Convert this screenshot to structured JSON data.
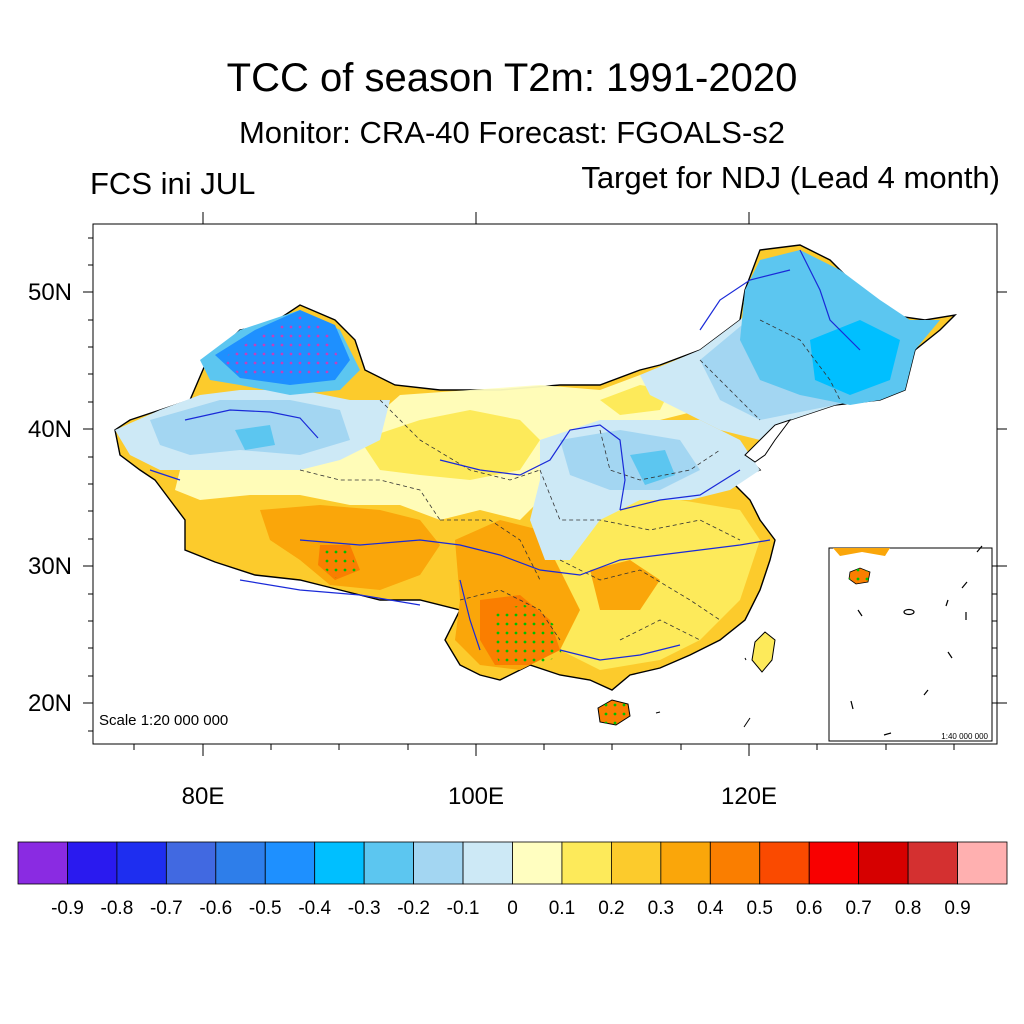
{
  "header": {
    "title": "TCC of season T2m: 1991-2020",
    "subtitle": "Monitor: CRA-40   Forecast: FGOALS-s2",
    "left_label": "FCS ini JUL",
    "right_label": "Target for NDJ (Lead 4 month)"
  },
  "map": {
    "lat_ticks": [
      "50N",
      "40N",
      "30N",
      "20N"
    ],
    "lon_ticks": [
      "80E",
      "100E",
      "120E"
    ],
    "scale_label": "Scale 1:20 000 000",
    "inset_scale_label": "1:40 000 000"
  },
  "colorbar": {
    "labels": [
      "-0.9",
      "-0.8",
      "-0.7",
      "-0.6",
      "-0.5",
      "-0.4",
      "-0.3",
      "-0.2",
      "-0.1",
      "0",
      "0.1",
      "0.2",
      "0.3",
      "0.4",
      "0.5",
      "0.6",
      "0.7",
      "0.8",
      "0.9"
    ],
    "colors": [
      "#8a2be2",
      "#2a1aef",
      "#1e2ef0",
      "#4169e1",
      "#2e7eea",
      "#1e90ff",
      "#00bfff",
      "#5cc6f0",
      "#a3d6f2",
      "#cde9f6",
      "#fffec0",
      "#fdea5a",
      "#fccb2c",
      "#faa60a",
      "#fa7e00",
      "#fa4a00",
      "#f80000",
      "#d60000",
      "#d43030",
      "#ffb0b0"
    ]
  },
  "legend_colors": {
    "land_base": "#fccb2c",
    "stipple": "#00c000",
    "stipple_neg": "#c000c0"
  }
}
